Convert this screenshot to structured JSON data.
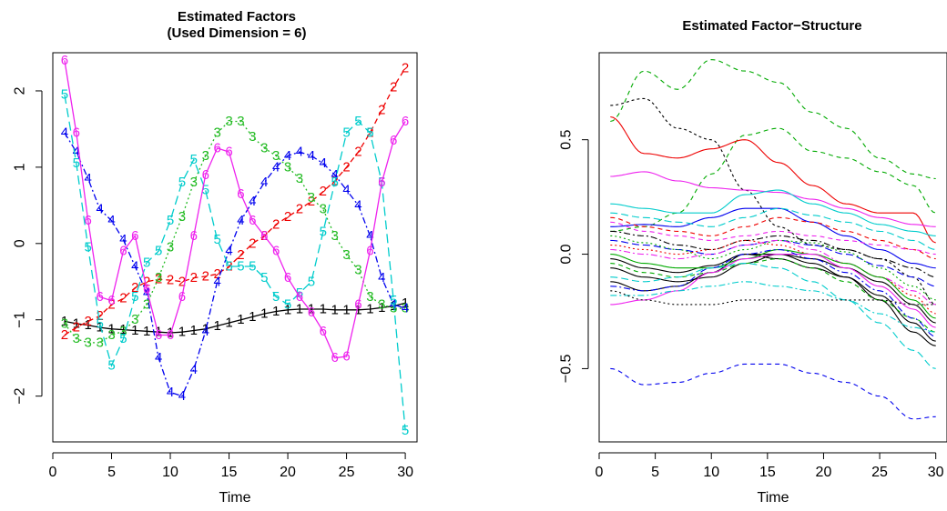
{
  "chart_data": [
    {
      "type": "line",
      "title_lines": [
        "Estimated Factors",
        "(Used Dimension = 6)"
      ],
      "xlabel": "Time",
      "ylabel": "",
      "xlim": [
        0,
        31
      ],
      "ylim": [
        -2.6,
        2.5
      ],
      "xticks": [
        0,
        5,
        10,
        15,
        20,
        25,
        30
      ],
      "xtick_labels": [
        "0",
        "5",
        "10",
        "15",
        "20",
        "25",
        "30"
      ],
      "yticks": [
        -2,
        -1,
        0,
        1,
        2
      ],
      "ytick_labels": [
        "−2",
        "−1",
        "0",
        "1",
        "2"
      ],
      "x": [
        1,
        2,
        3,
        4,
        5,
        6,
        7,
        8,
        9,
        10,
        11,
        12,
        13,
        14,
        15,
        16,
        17,
        18,
        19,
        20,
        21,
        22,
        23,
        24,
        25,
        26,
        27,
        28,
        29,
        30
      ],
      "series": [
        {
          "label": "1",
          "color": "#000000",
          "dash": "solid",
          "values": [
            -1.02,
            -1.05,
            -1.07,
            -1.1,
            -1.12,
            -1.13,
            -1.14,
            -1.15,
            -1.16,
            -1.17,
            -1.16,
            -1.14,
            -1.12,
            -1.08,
            -1.04,
            -1.0,
            -0.96,
            -0.92,
            -0.89,
            -0.87,
            -0.86,
            -0.86,
            -0.86,
            -0.87,
            -0.87,
            -0.87,
            -0.86,
            -0.84,
            -0.82,
            -0.78
          ]
        },
        {
          "label": "2",
          "color": "#ee0000",
          "dash": "6,4",
          "values": [
            -1.2,
            -1.1,
            -1.02,
            -0.95,
            -0.8,
            -0.72,
            -0.58,
            -0.5,
            -0.47,
            -0.48,
            -0.5,
            -0.45,
            -0.43,
            -0.4,
            -0.3,
            -0.15,
            0.0,
            0.1,
            0.25,
            0.35,
            0.45,
            0.55,
            0.68,
            0.82,
            1.0,
            1.2,
            1.45,
            1.75,
            2.05,
            2.3
          ]
        },
        {
          "label": "3",
          "color": "#22bb22",
          "dash": "2,3",
          "values": [
            -1.05,
            -1.25,
            -1.3,
            -1.3,
            -1.2,
            -1.15,
            -1.0,
            -0.8,
            -0.45,
            -0.05,
            0.35,
            0.8,
            1.15,
            1.45,
            1.6,
            1.6,
            1.4,
            1.25,
            1.15,
            1.0,
            0.85,
            0.6,
            0.45,
            0.1,
            -0.15,
            -0.35,
            -0.7,
            -0.8,
            -0.85,
            -0.85
          ]
        },
        {
          "label": "4",
          "color": "#0000ee",
          "dash": "7,3,2,3",
          "values": [
            1.45,
            1.2,
            0.85,
            0.45,
            0.3,
            0.05,
            -0.3,
            -0.65,
            -1.5,
            -1.95,
            -2.0,
            -1.65,
            -1.15,
            -0.5,
            -0.1,
            0.3,
            0.55,
            0.8,
            1.0,
            1.15,
            1.2,
            1.15,
            1.05,
            0.9,
            0.7,
            0.5,
            0.1,
            -0.45,
            -0.8,
            -0.85
          ]
        },
        {
          "label": "5",
          "color": "#00cccc",
          "dash": "10,5",
          "values": [
            1.95,
            1.05,
            -0.05,
            -1.05,
            -1.6,
            -1.25,
            -0.7,
            -0.25,
            -0.1,
            0.3,
            0.8,
            1.1,
            0.7,
            0.05,
            -0.3,
            -0.3,
            -0.3,
            -0.45,
            -0.7,
            -0.8,
            -0.65,
            -0.5,
            0.15,
            0.8,
            1.45,
            1.6,
            1.45,
            0.8,
            -0.75,
            -2.45
          ]
        },
        {
          "label": "6",
          "color": "#ee22ee",
          "dash": "solid",
          "values": [
            2.4,
            1.45,
            0.3,
            -0.7,
            -0.75,
            -0.1,
            0.1,
            -0.6,
            -1.2,
            -1.2,
            -0.7,
            0.1,
            0.9,
            1.25,
            1.2,
            0.65,
            0.3,
            0.1,
            -0.1,
            -0.45,
            -0.7,
            -0.9,
            -1.15,
            -1.5,
            -1.48,
            -0.8,
            -0.1,
            0.8,
            1.35,
            1.6
          ]
        }
      ]
    },
    {
      "type": "line",
      "title": "Estimated Factor−Structure",
      "xlabel": "Time",
      "ylabel": "",
      "xlim": [
        0,
        31
      ],
      "ylim": [
        -0.82,
        0.88
      ],
      "xticks": [
        0,
        5,
        10,
        15,
        20,
        25,
        30
      ],
      "xtick_labels": [
        "0",
        "5",
        "10",
        "15",
        "20",
        "25",
        "30"
      ],
      "yticks": [
        -0.5,
        0.0,
        0.5
      ],
      "ytick_labels": [
        "−0.5",
        "0.0",
        "0.5"
      ],
      "knots_x": [
        1,
        4,
        7,
        10,
        13,
        16,
        19,
        22,
        25,
        28,
        30
      ],
      "series": [
        {
          "color": "#00aa00",
          "dash": "5,4",
          "knots": [
            0.58,
            0.8,
            0.72,
            0.85,
            0.8,
            0.75,
            0.62,
            0.55,
            0.42,
            0.35,
            0.33
          ]
        },
        {
          "color": "#00aa00",
          "dash": "5,4",
          "knots": [
            0.1,
            0.12,
            0.18,
            0.35,
            0.52,
            0.55,
            0.45,
            0.42,
            0.36,
            0.3,
            0.18
          ]
        },
        {
          "color": "#000000",
          "dash": "3,3",
          "knots": [
            0.65,
            0.68,
            0.55,
            0.5,
            0.28,
            0.12,
            0.04,
            0.02,
            -0.02,
            -0.1,
            -0.22
          ]
        },
        {
          "color": "#ee0000",
          "dash": "solid",
          "knots": [
            0.6,
            0.44,
            0.42,
            0.46,
            0.5,
            0.4,
            0.3,
            0.22,
            0.18,
            0.18,
            0.05
          ]
        },
        {
          "color": "#ee22ee",
          "dash": "solid",
          "knots": [
            0.34,
            0.36,
            0.32,
            0.29,
            0.28,
            0.27,
            0.24,
            0.2,
            0.16,
            0.13,
            0.12
          ]
        },
        {
          "color": "#00cccc",
          "dash": "solid",
          "knots": [
            0.22,
            0.2,
            0.18,
            0.18,
            0.26,
            0.28,
            0.22,
            0.18,
            0.13,
            0.1,
            0.08
          ]
        },
        {
          "color": "#0000ee",
          "dash": "solid",
          "knots": [
            0.12,
            0.13,
            0.12,
            0.16,
            0.2,
            0.2,
            0.14,
            0.08,
            0.02,
            -0.04,
            -0.06
          ]
        },
        {
          "color": "#00cccc",
          "dash": "8,4",
          "knots": [
            0.18,
            0.16,
            0.14,
            0.12,
            0.16,
            0.2,
            0.17,
            0.14,
            0.1,
            0.06,
            0.02
          ]
        },
        {
          "color": "#ee0000",
          "dash": "5,4",
          "knots": [
            0.16,
            0.12,
            0.1,
            0.08,
            0.12,
            0.16,
            0.14,
            0.1,
            0.06,
            0.02,
            -0.02
          ]
        },
        {
          "color": "#ee22ee",
          "dash": "5,4",
          "knots": [
            0.14,
            0.1,
            0.08,
            0.06,
            0.08,
            0.1,
            0.08,
            0.06,
            0.04,
            0.02,
            0.0
          ]
        },
        {
          "color": "#000000",
          "dash": "7,3,2,3",
          "knots": [
            0.1,
            0.08,
            0.04,
            0.02,
            0.06,
            0.08,
            0.06,
            0.02,
            -0.02,
            -0.06,
            -0.1
          ]
        },
        {
          "color": "#0000ee",
          "dash": "8,4",
          "knots": [
            0.06,
            0.04,
            0.02,
            0.0,
            0.04,
            0.06,
            0.04,
            0.0,
            -0.05,
            -0.1,
            -0.14
          ]
        },
        {
          "color": "#00aa00",
          "dash": "2,3",
          "knots": [
            0.08,
            0.05,
            0.02,
            -0.02,
            0.02,
            0.06,
            0.05,
            0.01,
            -0.06,
            -0.14,
            -0.2
          ]
        },
        {
          "color": "#ee0000",
          "dash": "2,3",
          "knots": [
            0.04,
            0.02,
            0.0,
            0.02,
            0.06,
            0.04,
            0.0,
            -0.04,
            -0.1,
            -0.18,
            -0.26
          ]
        },
        {
          "color": "#ee22ee",
          "dash": "7,3,2,3",
          "knots": [
            0.02,
            0.0,
            -0.02,
            0.0,
            0.04,
            0.06,
            0.02,
            -0.04,
            -0.1,
            -0.16,
            -0.22
          ]
        },
        {
          "color": "#000000",
          "dash": "solid",
          "knots": [
            -0.02,
            -0.06,
            -0.08,
            -0.05,
            0.0,
            0.0,
            -0.02,
            -0.06,
            -0.12,
            -0.22,
            -0.3
          ]
        },
        {
          "color": "#000000",
          "dash": "solid",
          "knots": [
            -0.12,
            -0.16,
            -0.14,
            -0.08,
            0.0,
            -0.02,
            -0.06,
            -0.1,
            -0.18,
            -0.3,
            -0.38
          ]
        },
        {
          "color": "#000000",
          "dash": "solid",
          "knots": [
            -0.06,
            -0.1,
            -0.12,
            -0.1,
            -0.04,
            0.0,
            -0.04,
            -0.1,
            -0.2,
            -0.34,
            -0.4
          ]
        },
        {
          "color": "#00aa00",
          "dash": "solid",
          "knots": [
            0.0,
            -0.04,
            -0.06,
            -0.06,
            -0.02,
            0.02,
            0.0,
            -0.04,
            -0.1,
            -0.2,
            -0.28
          ]
        },
        {
          "color": "#00aa00",
          "dash": "5,4",
          "knots": [
            -0.04,
            -0.08,
            -0.1,
            -0.08,
            -0.04,
            -0.02,
            -0.06,
            -0.12,
            -0.2,
            -0.28,
            -0.34
          ]
        },
        {
          "color": "#ee22ee",
          "dash": "solid",
          "knots": [
            -0.22,
            -0.2,
            -0.16,
            -0.08,
            -0.02,
            0.0,
            0.0,
            -0.06,
            -0.14,
            -0.24,
            -0.32
          ]
        },
        {
          "color": "#0000ee",
          "dash": "7,3,2,3",
          "knots": [
            -0.14,
            -0.16,
            -0.14,
            -0.06,
            0.0,
            0.02,
            -0.02,
            -0.08,
            -0.16,
            -0.28,
            -0.36
          ]
        },
        {
          "color": "#00cccc",
          "dash": "8,4",
          "knots": [
            -0.1,
            -0.12,
            -0.1,
            -0.06,
            -0.04,
            -0.06,
            -0.12,
            -0.2,
            -0.3,
            -0.42,
            -0.5
          ]
        },
        {
          "color": "#00cccc",
          "dash": "7,3,2,3",
          "knots": [
            -0.18,
            -0.18,
            -0.16,
            -0.14,
            -0.12,
            -0.14,
            -0.16,
            -0.2,
            -0.26,
            -0.32,
            -0.34
          ]
        },
        {
          "color": "#000000",
          "dash": "2,3",
          "knots": [
            -0.16,
            -0.2,
            -0.22,
            -0.22,
            -0.2,
            -0.2,
            -0.2,
            -0.2,
            -0.2,
            -0.22,
            -0.22
          ]
        },
        {
          "color": "#0000ee",
          "dash": "5,4",
          "knots": [
            -0.5,
            -0.57,
            -0.56,
            -0.52,
            -0.48,
            -0.48,
            -0.52,
            -0.56,
            -0.62,
            -0.72,
            -0.71
          ]
        }
      ]
    }
  ]
}
